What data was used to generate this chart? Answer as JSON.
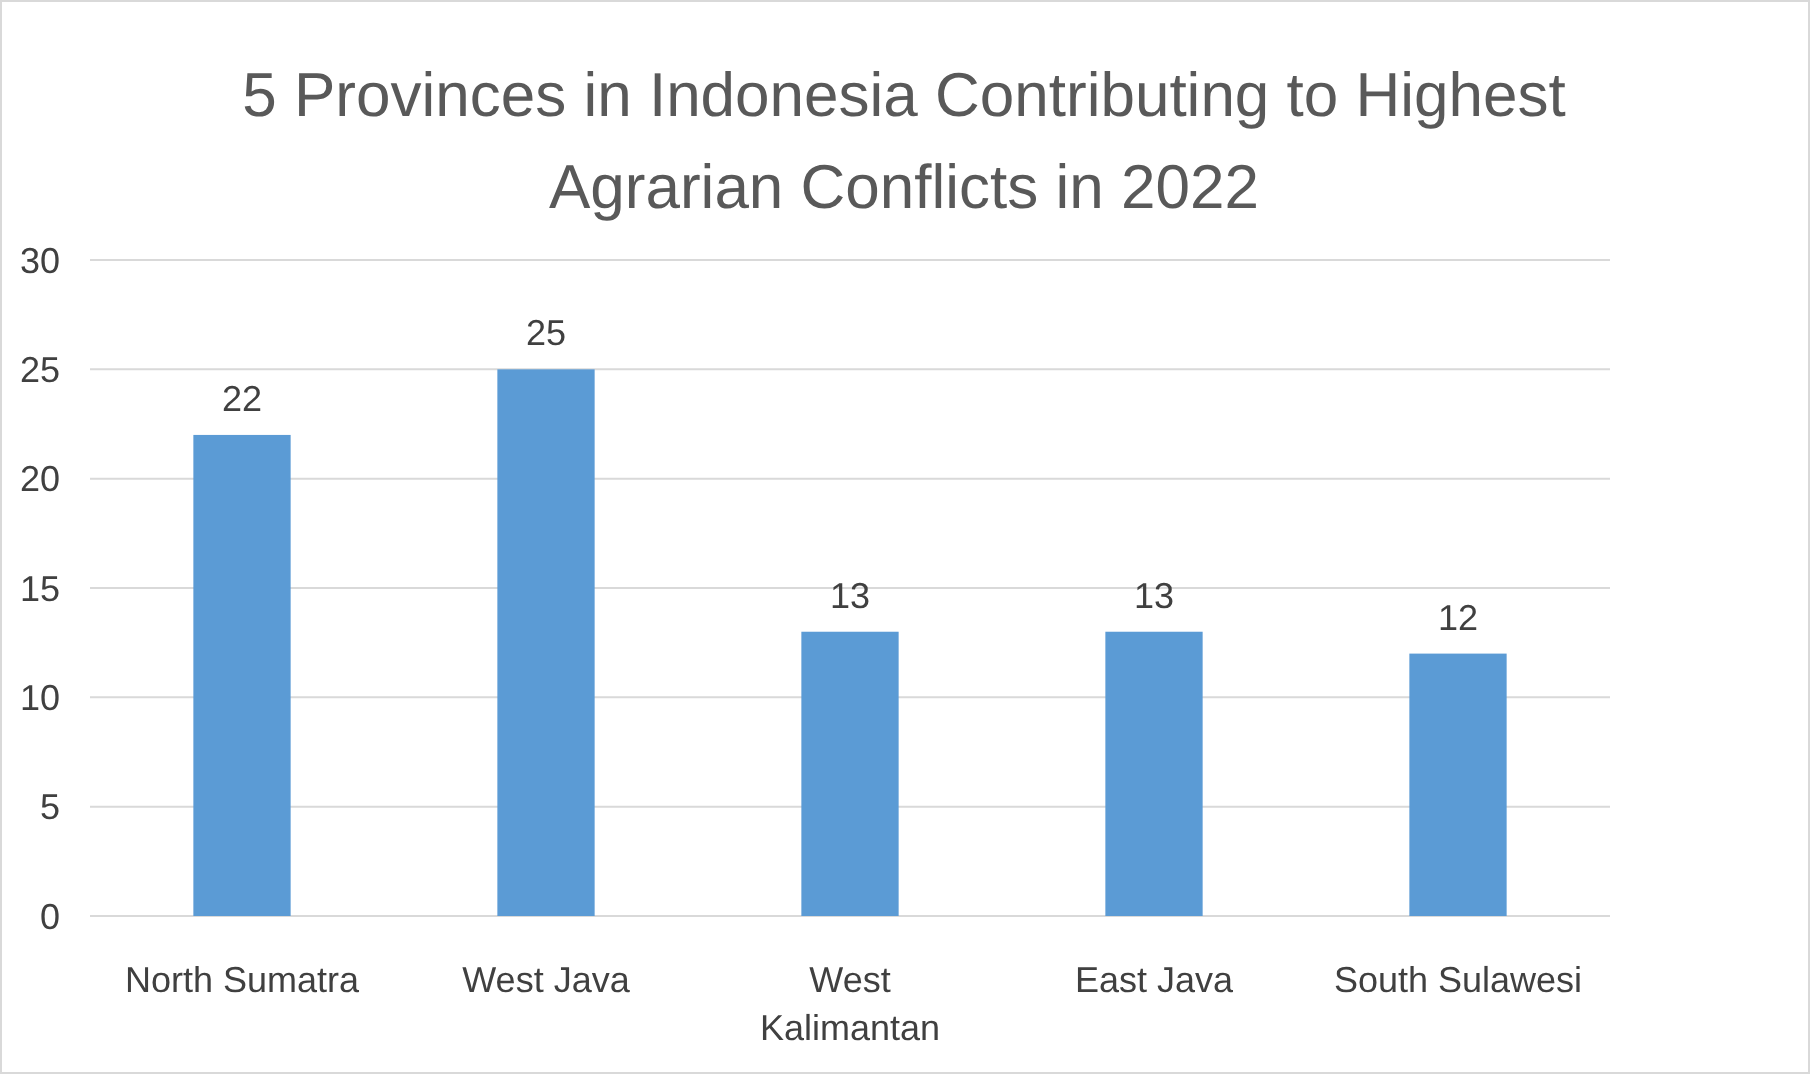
{
  "chart_data": {
    "type": "bar",
    "title": "5 Provinces in Indonesia Contributing to Highest Agrarian Conflicts in 2022",
    "categories": [
      "North Sumatra",
      "West Java",
      "West Kalimantan",
      "East Java",
      "South Sulawesi"
    ],
    "values": [
      22,
      25,
      13,
      13,
      12
    ],
    "color": "#5b9bd5",
    "ylim": [
      0,
      30
    ],
    "yticks": [
      0,
      5,
      10,
      15,
      20,
      25,
      30
    ],
    "grid": "y",
    "data_labels": true
  }
}
